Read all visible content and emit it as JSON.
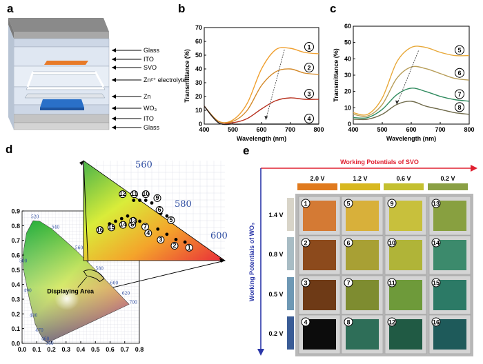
{
  "panel_labels": {
    "a": "a",
    "b": "b",
    "c": "c",
    "d": "d",
    "e": "e"
  },
  "panel_a": {
    "layers": [
      "Glass",
      "ITO",
      "SVO",
      "Zn²⁺ electrolyte",
      "Zn",
      "WO₃",
      "ITO",
      "Glass"
    ]
  },
  "chart_data": [
    {
      "panel": "b",
      "type": "line",
      "xlabel": "Wavelength (nm)",
      "ylabel": "Transmittance (%)",
      "xlim": [
        400,
        800
      ],
      "ylim": [
        0,
        70
      ],
      "xticks": [
        400,
        500,
        600,
        700,
        800
      ],
      "yticks": [
        0,
        10,
        20,
        30,
        40,
        50,
        60,
        70
      ],
      "series": [
        {
          "name": "1",
          "color": "#f0a030",
          "x": [
            400,
            450,
            500,
            550,
            600,
            650,
            700,
            750,
            800
          ],
          "y": [
            13,
            2,
            3,
            15,
            40,
            54,
            55,
            52,
            51
          ]
        },
        {
          "name": "2",
          "color": "#d48a2a",
          "x": [
            400,
            450,
            500,
            550,
            600,
            650,
            700,
            750,
            800
          ],
          "y": [
            13,
            2,
            2,
            10,
            28,
            38,
            40,
            37,
            36
          ]
        },
        {
          "name": "3",
          "color": "#b83220",
          "x": [
            400,
            450,
            500,
            550,
            600,
            650,
            700,
            750,
            800
          ],
          "y": [
            13,
            1,
            1,
            4,
            11,
            17,
            19,
            18,
            18
          ]
        },
        {
          "name": "4",
          "color": "#222222",
          "x": [
            400,
            450,
            500,
            550,
            600,
            650,
            700,
            750,
            800
          ],
          "y": [
            13,
            1,
            0,
            0,
            0,
            0,
            0,
            0,
            0
          ]
        }
      ]
    },
    {
      "panel": "c",
      "type": "line",
      "xlabel": "Wavelength (nm)",
      "ylabel": "Transmittance (%)",
      "xlim": [
        400,
        800
      ],
      "ylim": [
        0,
        60
      ],
      "xticks": [
        400,
        500,
        600,
        700,
        800
      ],
      "yticks": [
        0,
        10,
        20,
        30,
        40,
        50,
        60
      ],
      "series": [
        {
          "name": "5",
          "color": "#e8a838",
          "x": [
            400,
            450,
            500,
            550,
            600,
            650,
            700,
            750,
            800
          ],
          "y": [
            7,
            6,
            16,
            38,
            47,
            47,
            44,
            42,
            42
          ]
        },
        {
          "name": "6",
          "color": "#b89e5a",
          "x": [
            400,
            450,
            500,
            550,
            600,
            650,
            700,
            750,
            800
          ],
          "y": [
            6,
            5,
            12,
            28,
            35,
            34,
            31,
            28,
            27
          ]
        },
        {
          "name": "7",
          "color": "#2f8a5e",
          "x": [
            400,
            450,
            500,
            550,
            600,
            650,
            700,
            750,
            800
          ],
          "y": [
            4,
            4,
            9,
            18,
            22,
            20,
            17,
            15,
            14
          ]
        },
        {
          "name": "8",
          "color": "#6f6a4a",
          "x": [
            400,
            450,
            500,
            550,
            600,
            650,
            700,
            750,
            800
          ],
          "y": [
            3,
            3,
            6,
            12,
            14,
            11,
            9,
            7,
            6
          ]
        }
      ]
    },
    {
      "panel": "d",
      "type": "scatter",
      "xlim": [
        0,
        0.8
      ],
      "ylim": [
        0,
        0.9
      ],
      "xticks": [
        "0.0",
        "0.1",
        "0.2",
        "0.3",
        "0.4",
        "0.5",
        "0.6",
        "0.7",
        "0.8"
      ],
      "yticks": [
        "0.0",
        "0.1",
        "0.2",
        "0.3",
        "0.4",
        "0.5",
        "0.6",
        "0.7",
        "0.8",
        "0.9"
      ],
      "annotation": "Displaying Area",
      "wavelength_labels": [
        "460",
        "470",
        "480",
        "490",
        "500",
        "520",
        "540",
        "560",
        "580",
        "600",
        "620",
        "700",
        "380"
      ],
      "zoom_wavelength_labels": [
        "560",
        "580",
        "600"
      ],
      "points": [
        {
          "n": "1",
          "x": 0.575,
          "y": 0.41
        },
        {
          "n": "2",
          "x": 0.56,
          "y": 0.415
        },
        {
          "n": "3",
          "x": 0.545,
          "y": 0.425
        },
        {
          "n": "4",
          "x": 0.53,
          "y": 0.435
        },
        {
          "n": "5",
          "x": 0.545,
          "y": 0.46
        },
        {
          "n": "6",
          "x": 0.535,
          "y": 0.465
        },
        {
          "n": "7",
          "x": 0.5,
          "y": 0.45
        },
        {
          "n": "8",
          "x": 0.49,
          "y": 0.455
        },
        {
          "n": "9",
          "x": 0.52,
          "y": 0.485
        },
        {
          "n": "10",
          "x": 0.51,
          "y": 0.49
        },
        {
          "n": "11",
          "x": 0.5,
          "y": 0.49
        },
        {
          "n": "12",
          "x": 0.49,
          "y": 0.49
        },
        {
          "n": "13",
          "x": 0.48,
          "y": 0.46
        },
        {
          "n": "14",
          "x": 0.47,
          "y": 0.455
        },
        {
          "n": "15",
          "x": 0.46,
          "y": 0.45
        },
        {
          "n": "16",
          "x": 0.45,
          "y": 0.445
        }
      ]
    }
  ],
  "panel_e": {
    "col_title": "Working Potentials of SVO",
    "row_title": "Working Potentials of WO₃",
    "cols": [
      "2.0 V",
      "1.2 V",
      "0.6 V",
      "0.2 V"
    ],
    "col_colors": [
      "#e07a1e",
      "#d8b820",
      "#c4c030",
      "#8aa044"
    ],
    "rows": [
      "1.4 V",
      "0.8 V",
      "0.5 V",
      "0.2 V"
    ],
    "row_colors": [
      "#d8d4c8",
      "#a8bcc4",
      "#6e98b4",
      "#3a5c96"
    ],
    "cells": [
      [
        {
          "n": "1",
          "c": "#d47a34"
        },
        {
          "n": "5",
          "c": "#d8b03a"
        },
        {
          "n": "9",
          "c": "#c8c03c"
        },
        {
          "n": "13",
          "c": "#88a040"
        }
      ],
      [
        {
          "n": "2",
          "c": "#8c4a1c"
        },
        {
          "n": "6",
          "c": "#a8a034"
        },
        {
          "n": "10",
          "c": "#b0b438"
        },
        {
          "n": "14",
          "c": "#3c8a6c"
        }
      ],
      [
        {
          "n": "3",
          "c": "#6e3a16"
        },
        {
          "n": "7",
          "c": "#7e8c30"
        },
        {
          "n": "11",
          "c": "#6e9a3a"
        },
        {
          "n": "15",
          "c": "#2c7a66"
        }
      ],
      [
        {
          "n": "4",
          "c": "#0c0c0c"
        },
        {
          "n": "8",
          "c": "#2e6e58"
        },
        {
          "n": "12",
          "c": "#205a44"
        },
        {
          "n": "16",
          "c": "#1e5a5a"
        }
      ]
    ]
  }
}
